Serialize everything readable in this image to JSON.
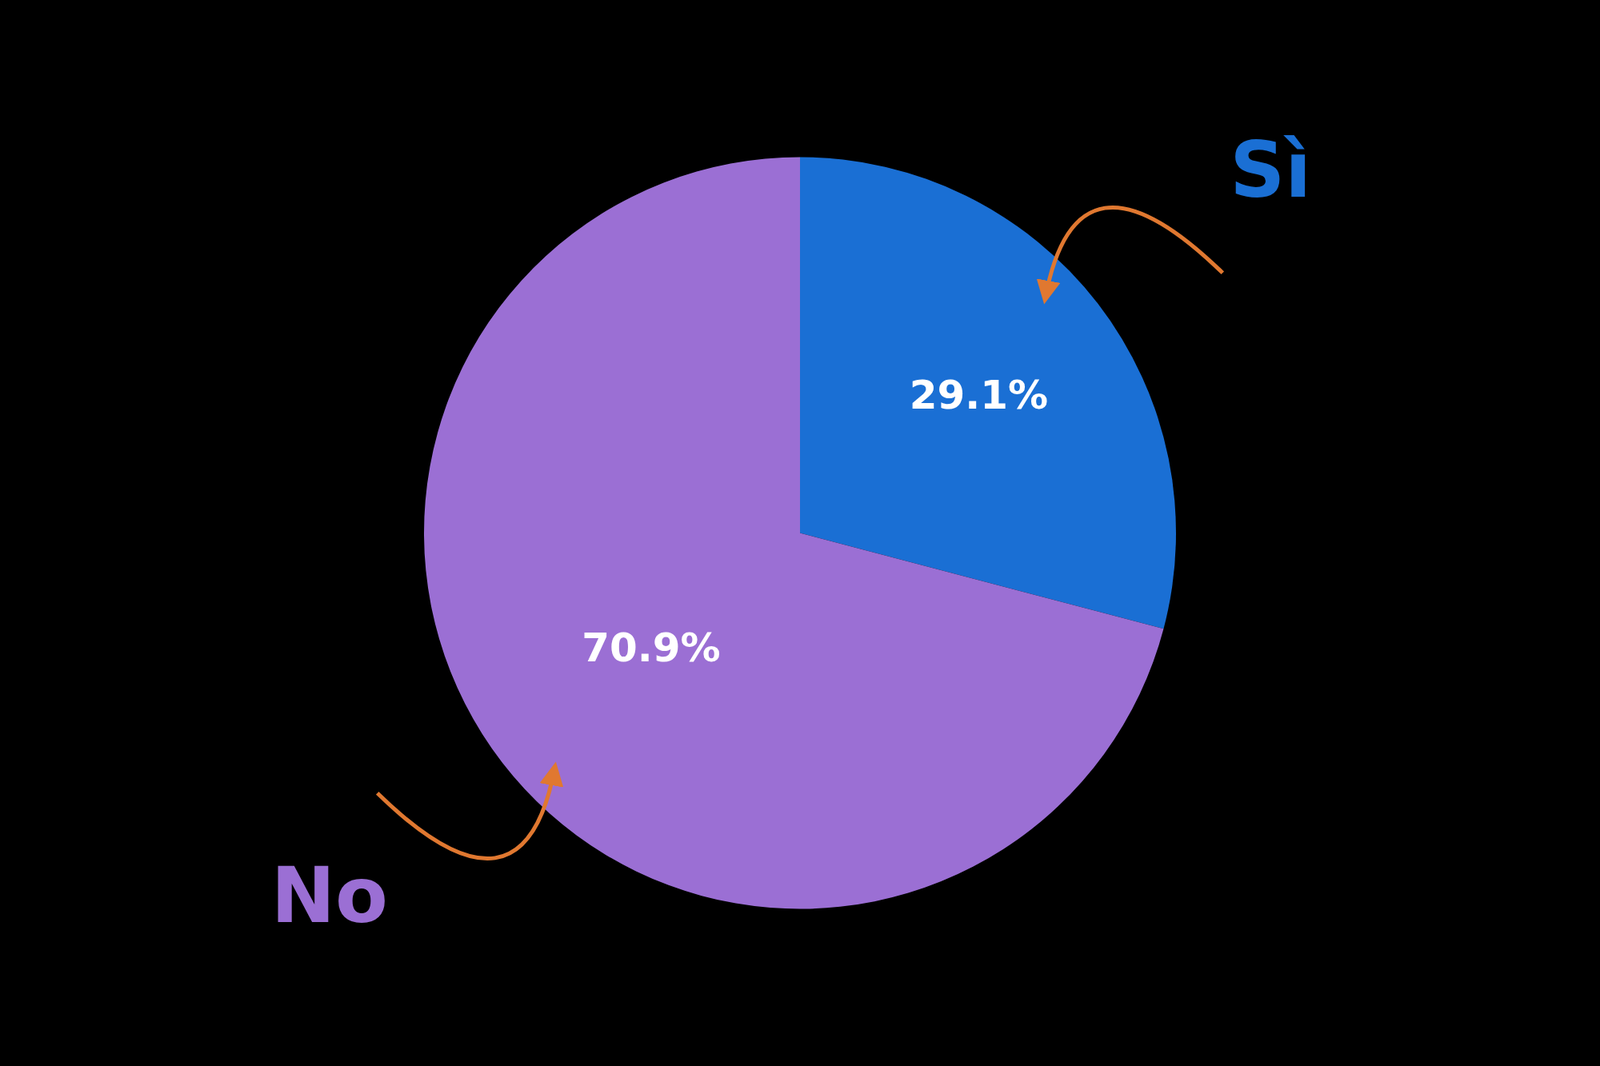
{
  "chart_data": {
    "type": "pie",
    "categories": [
      "Sì",
      "No"
    ],
    "values": [
      29.1,
      70.9
    ],
    "value_labels": [
      "29.1%",
      "70.9%"
    ],
    "colors": [
      "#1a6fd4",
      "#9b6fd4"
    ],
    "data_labels": true
  }
}
